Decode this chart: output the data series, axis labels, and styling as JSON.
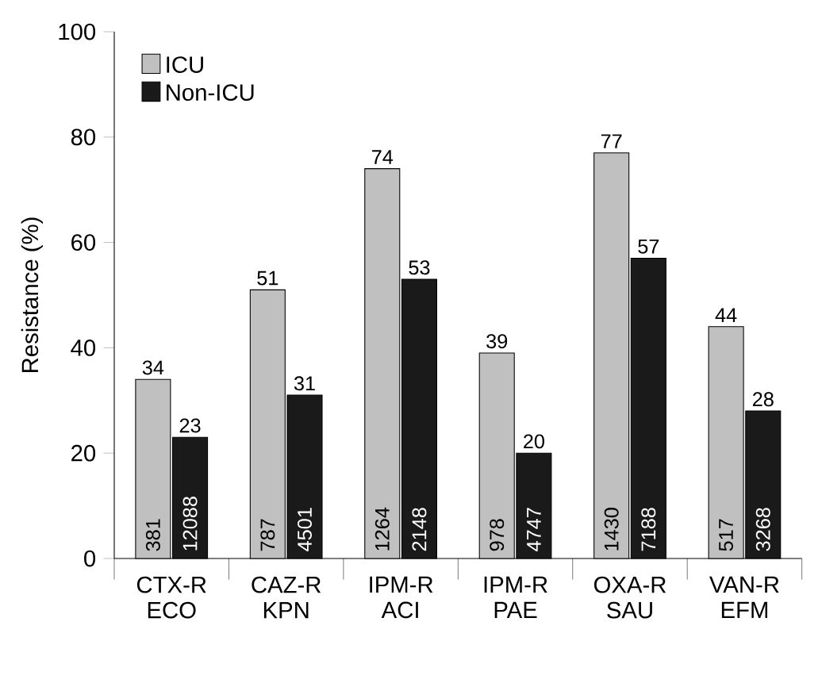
{
  "chart_data": {
    "type": "bar",
    "ylabel": "Resistance (%)",
    "categories": [
      "CTX-R ECO",
      "CAZ-R KPN",
      "IPM-R ACI",
      "IPM-R PAE",
      "OXA-R SAU",
      "VAN-R EFM"
    ],
    "series": [
      {
        "name": "ICU",
        "color": "#c0c0c0",
        "values": [
          34,
          51,
          74,
          39,
          77,
          44
        ]
      },
      {
        "name": "Non-ICU",
        "color": "#1a1a1a",
        "values": [
          23,
          31,
          53,
          20,
          57,
          28
        ]
      }
    ],
    "ylim": [
      0,
      100
    ],
    "yticks": [
      0,
      20,
      40,
      60,
      80,
      100
    ],
    "data_labels": true,
    "legend": "top left",
    "annotations": [
      "381",
      "12088",
      "787",
      "4501",
      "1264",
      "2148",
      "978",
      "4747",
      "1430",
      "7188",
      "517",
      "3268"
    ]
  }
}
